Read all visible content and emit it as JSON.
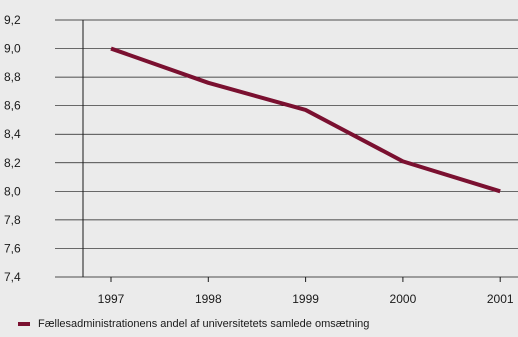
{
  "chart_data": {
    "type": "line",
    "title": "",
    "xlabel": "",
    "ylabel": "",
    "categories": [
      "1997",
      "1998",
      "1999",
      "2000",
      "2001"
    ],
    "series": [
      {
        "name": "Fællesadministrationens andel af universitetets samlede omsætning",
        "values": [
          9.0,
          8.76,
          8.57,
          8.21,
          8.0
        ],
        "color": "#7a1030"
      }
    ],
    "yticks": [
      "7,4",
      "7,6",
      "7,8",
      "8,0",
      "8,2",
      "8,4",
      "8,6",
      "8,8",
      "9,0",
      "9,2"
    ],
    "ylim": [
      7.4,
      9.2
    ],
    "grid": true,
    "legend_position": "bottom-left"
  },
  "colors": {
    "background": "#ebebeb",
    "gridline": "#1a1a1a",
    "series": "#7a1030"
  }
}
